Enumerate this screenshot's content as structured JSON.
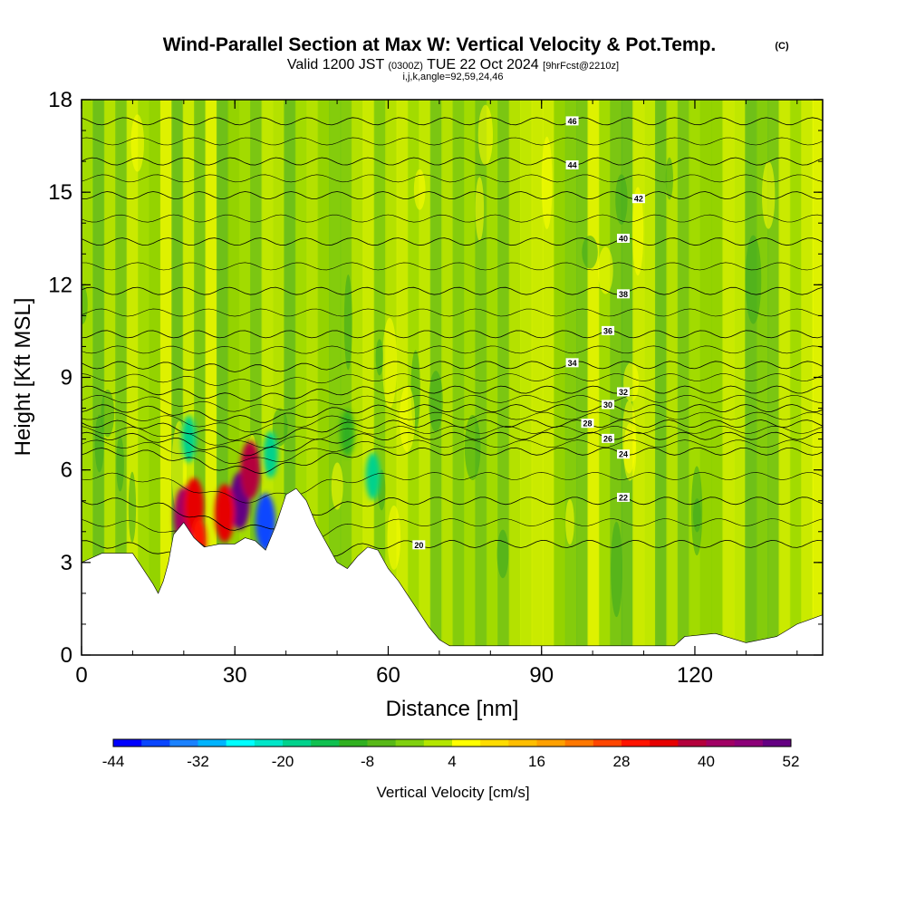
{
  "chart_data": {
    "type": "heatmap",
    "title": "Wind-Parallel Section at Max W: Vertical Velocity & Pot.Temp.",
    "title_mark": "(C)",
    "subtitle": {
      "prefix": "Valid 1200 JST ",
      "utc": "(0300Z)",
      "date": " TUE 22 Oct 2024 ",
      "forecast": "[9hrFcst@2210z]"
    },
    "meta": "i,j,k,angle=92,59,24,46",
    "xlabel": "Distance [nm]",
    "ylabel": "Height [Kft MSL]",
    "xlim": [
      0,
      145
    ],
    "ylim": [
      0,
      18
    ],
    "x_ticks": [
      "0",
      "30",
      "60",
      "90",
      "120"
    ],
    "y_ticks": [
      "0",
      "3",
      "6",
      "9",
      "12",
      "15",
      "18"
    ],
    "colorbar": {
      "label": "Vertical Velocity [cm/s]",
      "tick_labels": [
        "-44",
        "-32",
        "-20",
        "-8",
        "4",
        "16",
        "28",
        "40",
        "52"
      ],
      "colors": [
        "#0000ff",
        "#0a46ff",
        "#1b82ff",
        "#00b4ff",
        "#00ffff",
        "#00e6c8",
        "#00d28c",
        "#10c050",
        "#30b020",
        "#58b818",
        "#80d010",
        "#b4e600",
        "#ffff00",
        "#ffdc00",
        "#ffbe00",
        "#ffa000",
        "#ff7800",
        "#ff4600",
        "#ff1400",
        "#e60000",
        "#b4003c",
        "#a00064",
        "#8c0078",
        "#640082"
      ]
    },
    "isentropes": {
      "levels_K_offset": [
        20,
        22,
        24,
        26,
        28,
        30,
        32,
        34,
        36,
        38,
        40,
        42,
        44,
        46
      ],
      "labels": [
        "20",
        "22",
        "24",
        "26",
        "28",
        "30",
        "32",
        "34",
        "36",
        "38",
        "40",
        "42",
        "44",
        "46"
      ]
    },
    "terrain_nm_kft": [
      [
        0,
        3.0
      ],
      [
        4,
        3.3
      ],
      [
        10,
        3.3
      ],
      [
        12,
        2.8
      ],
      [
        14,
        2.3
      ],
      [
        15,
        2.0
      ],
      [
        16,
        2.4
      ],
      [
        17,
        3.0
      ],
      [
        18,
        3.9
      ],
      [
        20,
        4.3
      ],
      [
        22,
        3.8
      ],
      [
        24,
        3.5
      ],
      [
        27,
        3.6
      ],
      [
        30,
        3.6
      ],
      [
        32,
        3.8
      ],
      [
        34,
        3.7
      ],
      [
        36,
        3.4
      ],
      [
        38,
        4.2
      ],
      [
        40,
        5.2
      ],
      [
        42,
        5.4
      ],
      [
        44,
        5.0
      ],
      [
        46,
        4.2
      ],
      [
        48,
        3.6
      ],
      [
        50,
        3.0
      ],
      [
        52,
        2.8
      ],
      [
        54,
        3.2
      ],
      [
        56,
        3.5
      ],
      [
        58,
        3.4
      ],
      [
        60,
        2.8
      ],
      [
        62,
        2.4
      ],
      [
        64,
        1.9
      ],
      [
        66,
        1.4
      ],
      [
        68,
        0.9
      ],
      [
        70,
        0.5
      ],
      [
        72,
        0.3
      ],
      [
        80,
        0.3
      ],
      [
        100,
        0.3
      ],
      [
        116,
        0.3
      ],
      [
        118,
        0.6
      ],
      [
        124,
        0.7
      ],
      [
        130,
        0.4
      ],
      [
        136,
        0.6
      ],
      [
        140,
        1.0
      ],
      [
        145,
        1.3
      ]
    ],
    "updraft_features": [
      {
        "x_nm": 20,
        "z_kft": 4.5,
        "w_cms": 40
      },
      {
        "x_nm": 22,
        "z_kft": 4.8,
        "w_cms": 32
      },
      {
        "x_nm": 31,
        "z_kft": 5.0,
        "w_cms": 52
      },
      {
        "x_nm": 28,
        "z_kft": 4.6,
        "w_cms": 30
      },
      {
        "x_nm": 33,
        "z_kft": 6.0,
        "w_cms": 36
      },
      {
        "x_nm": 21,
        "z_kft": 7.0,
        "w_cms": -20
      },
      {
        "x_nm": 36,
        "z_kft": 4.3,
        "w_cms": -40
      },
      {
        "x_nm": 37,
        "z_kft": 6.5,
        "w_cms": -20
      },
      {
        "x_nm": 57,
        "z_kft": 5.8,
        "w_cms": -20
      },
      {
        "x_nm": 52,
        "z_kft": 7.2,
        "w_cms": -12
      },
      {
        "x_nm": 23,
        "z_kft": 3.7,
        "w_cms": 28
      }
    ]
  }
}
